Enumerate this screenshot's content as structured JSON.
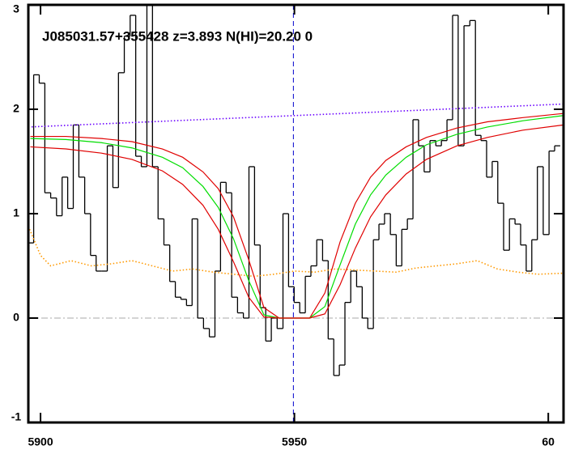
{
  "chart_data": {
    "type": "line",
    "annotation": "J085031.57+355428 z=3.893 N(HI)=20.20 0",
    "xlim": [
      5897.6,
      6003
    ],
    "ylim": [
      -1,
      3
    ],
    "xticks": [
      5900,
      5950,
      {
        "value": 6000,
        "label": "60"
      }
    ],
    "yticks": [
      -1,
      0,
      1,
      2,
      3
    ],
    "hline": 0,
    "vline": 5949.8,
    "x": [
      5898.1,
      5899.2,
      5900.3,
      5901.4,
      5902.6,
      5903.7,
      5904.8,
      5905.9,
      5907.0,
      5908.1,
      5909.3,
      5910.4,
      5911.5,
      5912.6,
      5913.7,
      5914.8,
      5915.9,
      5917.1,
      5918.2,
      5919.3,
      5920.4,
      5921.5,
      5922.6,
      5923.7,
      5924.9,
      5926.0,
      5927.1,
      5928.2,
      5929.3,
      5930.4,
      5931.5,
      5932.7,
      5933.8,
      5934.9,
      5936.0,
      5937.1,
      5938.2,
      5939.4,
      5940.5,
      5941.6,
      5942.7,
      5943.8,
      5944.9,
      5946.0,
      5947.2,
      5948.3,
      5949.4,
      5950.5,
      5951.6,
      5952.7,
      5953.8,
      5955.0,
      5956.1,
      5957.2,
      5958.3,
      5959.4,
      5960.5,
      5961.7,
      5962.8,
      5963.9,
      5965.0,
      5966.1,
      5967.2,
      5968.3,
      5969.5,
      5970.6,
      5971.7,
      5972.8,
      5973.9,
      5975.0,
      5976.1,
      5977.3,
      5978.4,
      5979.5,
      5980.6,
      5981.7,
      5982.8,
      5984.0,
      5985.1,
      5986.2,
      5987.3,
      5988.4,
      5989.5,
      5990.6,
      5991.8,
      5992.9,
      5994.0,
      5995.1,
      5996.2,
      5997.3,
      5998.4,
      5999.6,
      6000.7,
      6001.8
    ],
    "series": [
      {
        "color": "#000000",
        "style": "steps",
        "values": [
          0.72,
          2.33,
          2.25,
          1.2,
          1.15,
          0.98,
          1.35,
          1.05,
          1.85,
          1.35,
          1.0,
          0.6,
          0.45,
          0.45,
          1.65,
          1.25,
          2.35,
          2.7,
          2.9,
          1.55,
          1.45,
          3.0,
          1.45,
          0.95,
          0.7,
          0.35,
          0.2,
          0.18,
          0.12,
          0.95,
          0.0,
          -0.1,
          -0.18,
          0.45,
          1.3,
          1.2,
          0.2,
          0.05,
          0.0,
          1.45,
          0.7,
          0.1,
          -0.22,
          0.0,
          -0.1,
          1.0,
          0.3,
          0.15,
          0.05,
          0.4,
          0.5,
          0.75,
          0.55,
          -0.2,
          -0.55,
          -0.45,
          0.15,
          0.45,
          0.3,
          0.0,
          -0.1,
          0.75,
          0.9,
          1.0,
          0.8,
          0.5,
          0.85,
          0.95,
          1.9,
          1.65,
          1.4,
          1.7,
          1.65,
          1.7,
          1.9,
          2.9,
          1.65,
          2.8,
          2.85,
          1.75,
          1.7,
          1.35,
          1.5,
          1.1,
          0.65,
          0.95,
          0.9,
          0.7,
          0.45,
          0.75,
          1.45,
          0.8,
          1.6,
          1.65
        ]
      },
      {
        "color": "#6a00ff",
        "style": "dotted",
        "x": [
          5897.6,
          6003
        ],
        "values": [
          1.83,
          2.05
        ]
      },
      {
        "color": "#ff9900",
        "style": "dotted",
        "x": [
          5897.6,
          5900,
          5902,
          5906,
          5910,
          5914,
          5918,
          5922,
          5926,
          5930,
          5934,
          5938,
          5942,
          5946,
          5950,
          5954,
          5958,
          5962,
          5966,
          5970,
          5974,
          5978,
          5982,
          5986,
          5990,
          5994,
          5998,
          6003
        ],
        "values": [
          0.88,
          0.6,
          0.5,
          0.55,
          0.5,
          0.52,
          0.55,
          0.5,
          0.45,
          0.47,
          0.44,
          0.42,
          0.4,
          0.42,
          0.45,
          0.44,
          0.47,
          0.46,
          0.45,
          0.44,
          0.48,
          0.5,
          0.52,
          0.55,
          0.47,
          0.44,
          0.42,
          0.43
        ]
      },
      {
        "color": "#e00000",
        "style": "solid",
        "x": [
          5898,
          5905,
          5912,
          5918,
          5924,
          5928,
          5932,
          5935,
          5938,
          5941,
          5944,
          5947,
          5950,
          5953,
          5956,
          5959,
          5962,
          5965,
          5968,
          5972,
          5976,
          5982,
          5988,
          5995,
          6003
        ],
        "values": [
          1.74,
          1.74,
          1.72,
          1.69,
          1.62,
          1.54,
          1.4,
          1.24,
          0.97,
          0.56,
          0.1,
          0,
          0,
          0,
          0.24,
          0.73,
          1.1,
          1.35,
          1.51,
          1.64,
          1.73,
          1.82,
          1.88,
          1.92,
          1.96
        ]
      },
      {
        "color": "#00dd00",
        "style": "solid",
        "x": [
          5898,
          5905,
          5912,
          5918,
          5924,
          5928,
          5932,
          5935,
          5938,
          5941,
          5944,
          5947,
          5950,
          5953,
          5956,
          5959,
          5962,
          5965,
          5968,
          5972,
          5976,
          5982,
          5988,
          5995,
          6003
        ],
        "values": [
          1.72,
          1.71,
          1.68,
          1.63,
          1.54,
          1.44,
          1.26,
          1.06,
          0.76,
          0.36,
          0.03,
          0,
          0,
          0,
          0.11,
          0.51,
          0.9,
          1.18,
          1.37,
          1.54,
          1.66,
          1.76,
          1.83,
          1.89,
          1.94
        ]
      },
      {
        "color": "#e00000",
        "style": "solid",
        "x": [
          5898,
          5905,
          5912,
          5918,
          5924,
          5928,
          5932,
          5935,
          5938,
          5941,
          5944,
          5947,
          5950,
          5953,
          5956,
          5959,
          5962,
          5965,
          5968,
          5972,
          5976,
          5982,
          5988,
          5995,
          6003
        ],
        "values": [
          1.64,
          1.62,
          1.58,
          1.52,
          1.41,
          1.28,
          1.08,
          0.85,
          0.54,
          0.2,
          0.01,
          0,
          0,
          0,
          0.04,
          0.32,
          0.67,
          0.97,
          1.18,
          1.38,
          1.52,
          1.65,
          1.73,
          1.8,
          1.85
        ]
      }
    ]
  }
}
